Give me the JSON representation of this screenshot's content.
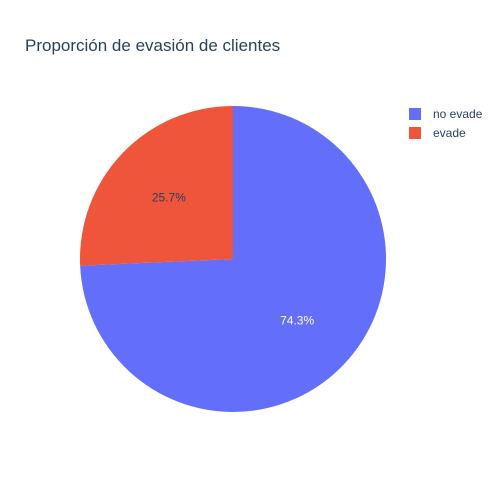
{
  "chart_data": {
    "type": "pie",
    "title": "Proporción de evasión de clientes",
    "slices": [
      {
        "label": "no evade",
        "value": 74.3,
        "percent_label": "74.3%",
        "color": "#636efa",
        "text_color": "#ffffff"
      },
      {
        "label": "evade",
        "value": 25.7,
        "percent_label": "25.7%",
        "color": "#ef553b",
        "text_color": "#2a3f5f"
      }
    ],
    "legend_position": "top-right",
    "start_angle_deg": 90,
    "direction": "clockwise"
  }
}
